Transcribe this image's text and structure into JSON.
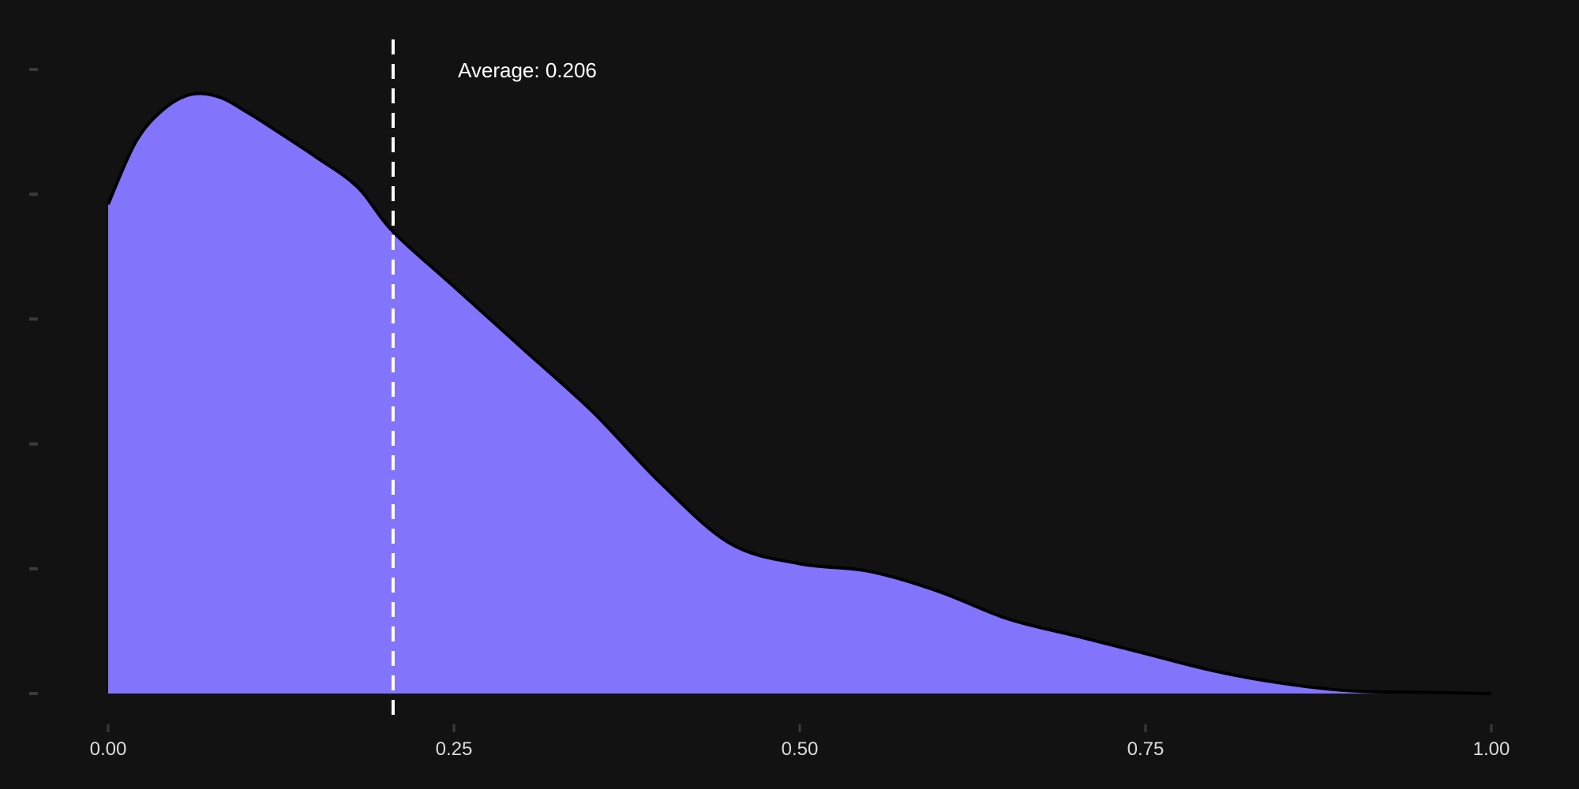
{
  "chart_data": {
    "type": "area",
    "title": "",
    "xlabel": "",
    "ylabel": "",
    "xlim": [
      0,
      1
    ],
    "ylim": [
      0,
      2.5
    ],
    "x_ticks": [
      0,
      0.25,
      0.5,
      0.75,
      1
    ],
    "x_tick_labels": [
      "0.00",
      "0.25",
      "0.50",
      "0.75",
      "1.00"
    ],
    "y_ticks": [
      0,
      0.5,
      1,
      1.5,
      2,
      2.5
    ],
    "y_tick_labels_visible": false,
    "grid": false,
    "legend": "none",
    "series": [
      {
        "x": [
          0,
          0.02,
          0.04,
          0.06,
          0.08,
          0.1,
          0.12,
          0.15,
          0.18,
          0.206,
          0.25,
          0.3,
          0.35,
          0.4,
          0.45,
          0.5,
          0.55,
          0.6,
          0.65,
          0.7,
          0.75,
          0.8,
          0.85,
          0.9,
          0.95,
          1
        ],
        "y": [
          1.96,
          2.21,
          2.34,
          2.4,
          2.39,
          2.33,
          2.26,
          2.15,
          2.03,
          1.85,
          1.63,
          1.38,
          1.13,
          0.84,
          0.6,
          0.52,
          0.49,
          0.41,
          0.3,
          0.23,
          0.16,
          0.09,
          0.04,
          0.01,
          0.005,
          0
        ]
      }
    ],
    "mean_line": {
      "value": 0.206,
      "label": "Average: 0.206"
    },
    "colors": {
      "background": "#121212",
      "fill": "#8274fb",
      "line": "#000000",
      "mean_line": "#ffffff",
      "tick": "#3a3a3a",
      "tick_label": "#dcdcdc"
    }
  }
}
